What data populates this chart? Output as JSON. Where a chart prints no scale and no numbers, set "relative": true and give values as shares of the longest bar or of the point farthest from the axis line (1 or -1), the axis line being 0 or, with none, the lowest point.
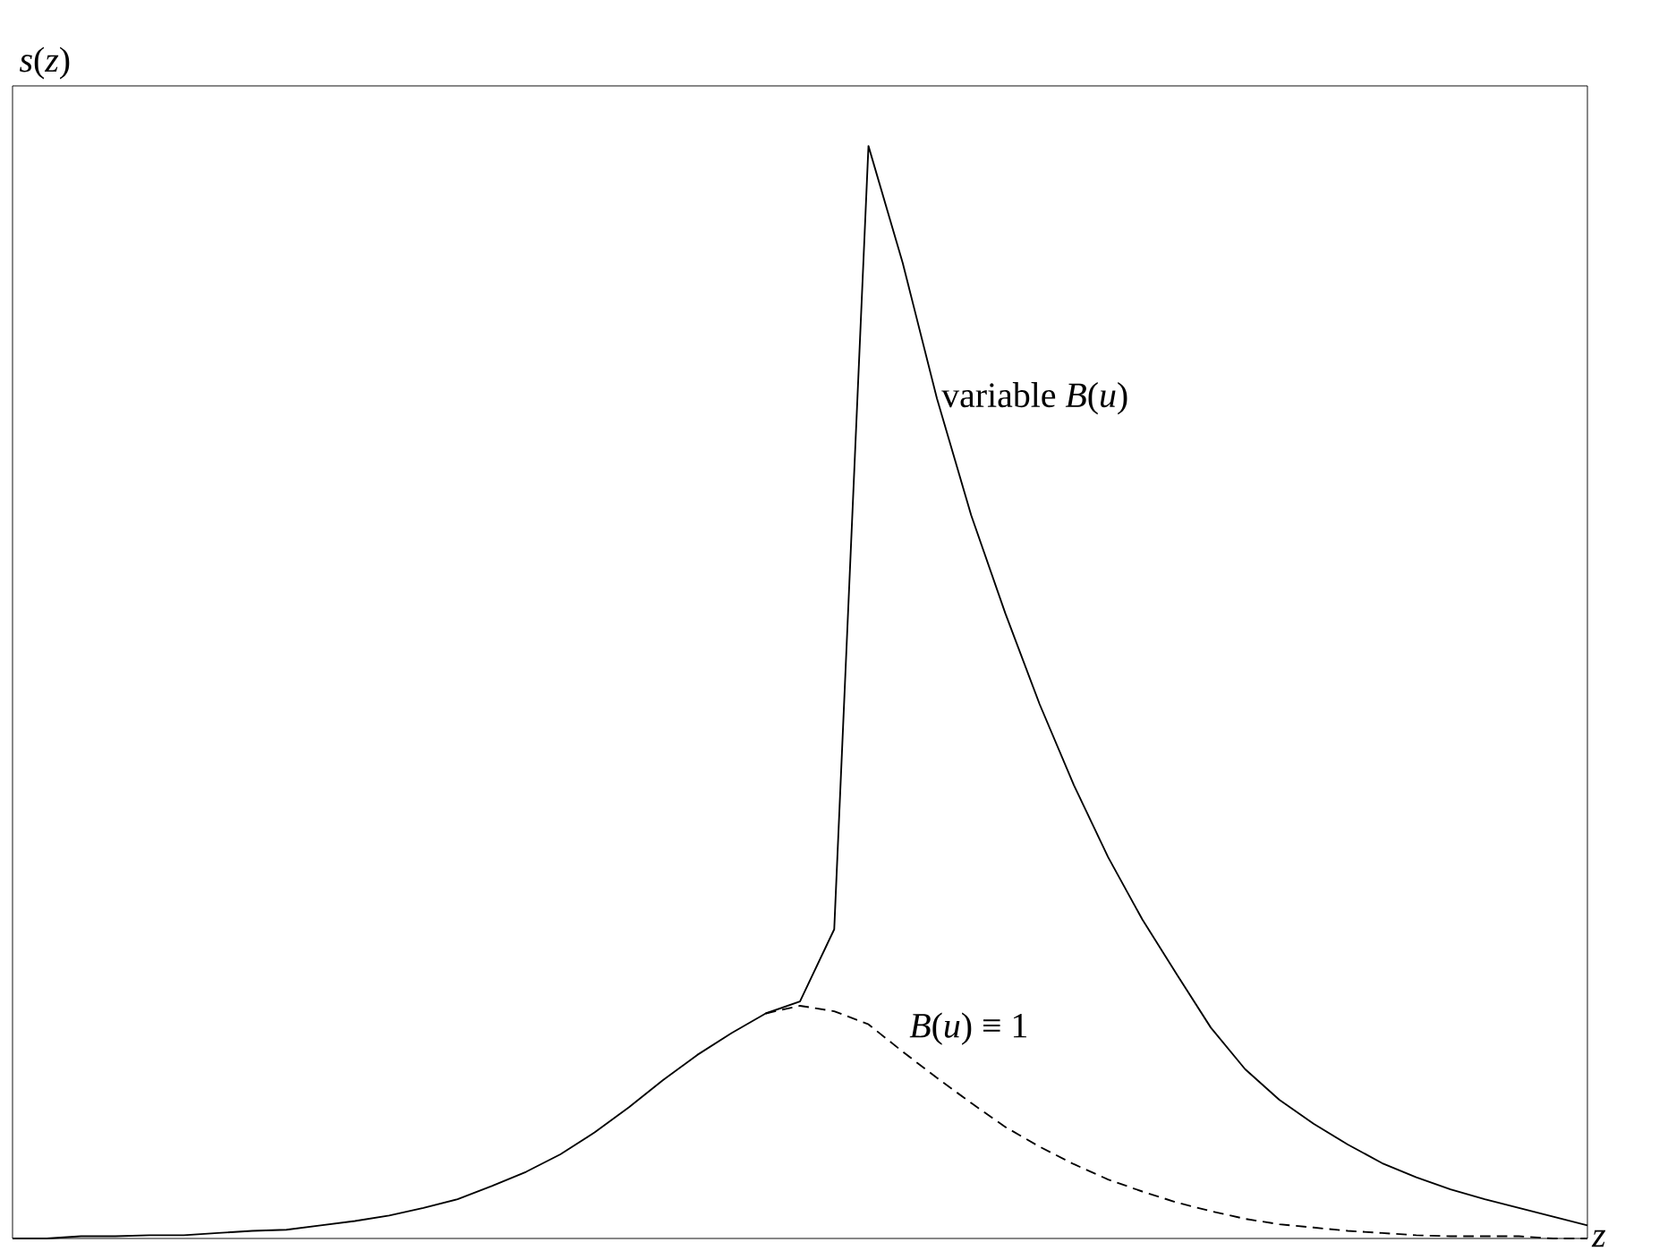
{
  "chart_data": {
    "type": "line",
    "relative": true,
    "xlabel": "*z*",
    "ylabel": "*s*(*z*)",
    "categories": [
      null,
      null,
      null,
      null,
      null,
      null,
      null,
      null,
      null,
      null,
      null,
      null,
      null,
      null,
      null,
      null,
      null,
      null,
      null,
      null,
      null,
      null,
      null,
      null,
      null,
      null,
      null,
      null,
      null,
      null,
      null,
      null,
      null,
      null,
      null,
      null,
      null,
      null,
      null,
      null,
      null,
      null,
      null,
      null,
      null,
      null,
      null
    ],
    "series": [
      {
        "name": "variable *B*(*u*)",
        "color": "#000000",
        "line_style": "solid",
        "values": [
          0,
          0,
          0.002,
          0.002,
          0.003,
          0.003,
          0.005,
          0.007,
          0.008,
          0.012,
          0.016,
          0.021,
          0.028,
          0.036,
          0.048,
          0.061,
          0.077,
          0.097,
          0.12,
          0.145,
          0.168,
          0.188,
          0.206,
          0.217,
          0.283,
          1,
          0.893,
          0.769,
          0.662,
          0.572,
          0.489,
          0.415,
          0.349,
          0.292,
          0.242,
          0.193,
          0.155,
          0.127,
          0.105,
          0.086,
          0.069,
          0.056,
          0.045,
          0.036,
          0.028,
          0.02,
          0.012
        ]
      },
      {
        "name": "*B*(*u*) ≡ 1",
        "color": "#000000",
        "line_style": "dashed",
        "values": [
          null,
          null,
          null,
          null,
          null,
          null,
          null,
          null,
          null,
          null,
          null,
          null,
          null,
          null,
          null,
          null,
          null,
          null,
          null,
          null,
          null,
          null,
          0.206,
          0.213,
          0.208,
          0.196,
          0.171,
          0.147,
          0.124,
          0.102,
          0.084,
          0.068,
          0.054,
          0.043,
          0.033,
          0.025,
          0.018,
          0.013,
          0.01,
          0.007,
          0.005,
          0.003,
          0.002,
          0.002,
          0.002,
          0,
          0
        ]
      }
    ],
    "marker": "none"
  }
}
